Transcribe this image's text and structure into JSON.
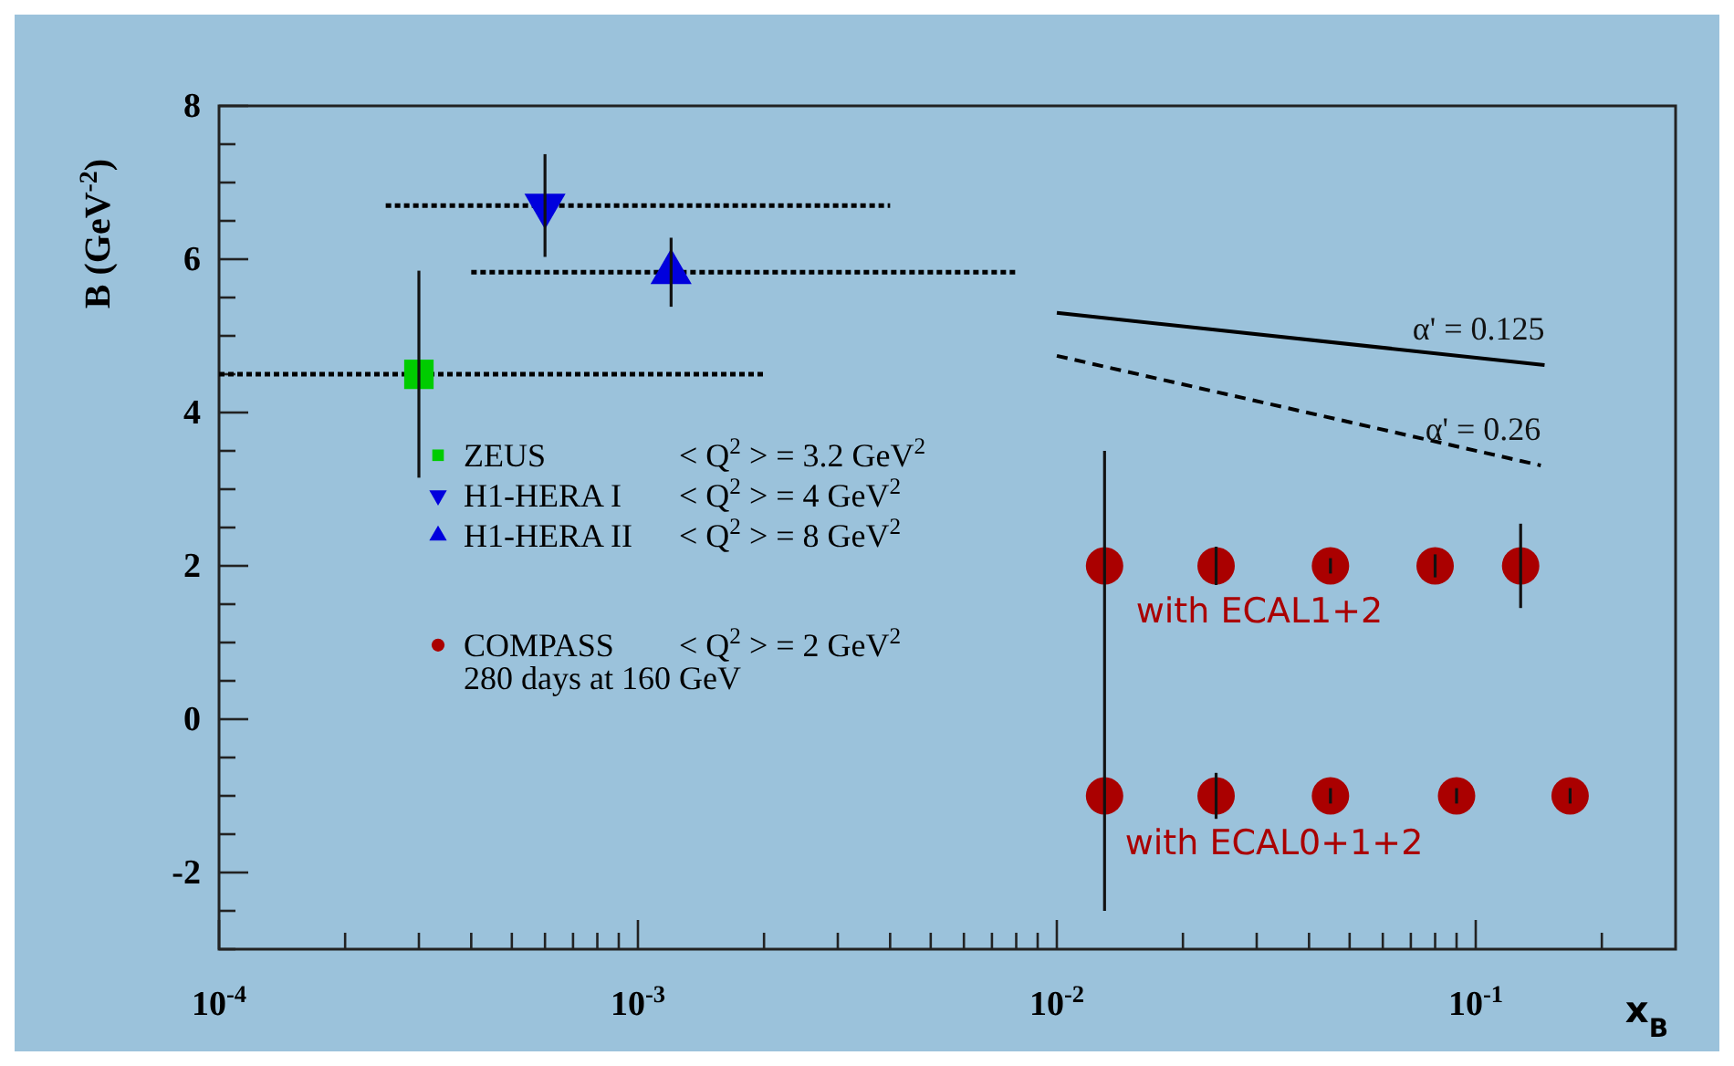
{
  "chart_data": {
    "type": "scatter",
    "xlabel": "x$_{B}$",
    "ylabel": "B (GeV$^{-2}$)",
    "log": "x",
    "xlim": [
      0.0001,
      0.3
    ],
    "ylim": [
      -3,
      8
    ],
    "xticks": [
      {
        "value": 0.0001,
        "label": "10$^{-4}$"
      },
      {
        "value": 0.0002,
        "label": null
      },
      {
        "value": 0.0003,
        "label": null
      },
      {
        "value": 0.0004,
        "label": null
      },
      {
        "value": 0.0005,
        "label": null
      },
      {
        "value": 0.0006,
        "label": null
      },
      {
        "value": 0.0007,
        "label": null
      },
      {
        "value": 0.0008,
        "label": null
      },
      {
        "value": 0.0009,
        "label": null
      },
      {
        "value": 0.001,
        "label": "10$^{-3}$"
      },
      {
        "value": 0.002,
        "label": null
      },
      {
        "value": 0.003,
        "label": null
      },
      {
        "value": 0.004,
        "label": null
      },
      {
        "value": 0.005,
        "label": null
      },
      {
        "value": 0.006,
        "label": null
      },
      {
        "value": 0.007,
        "label": null
      },
      {
        "value": 0.008,
        "label": null
      },
      {
        "value": 0.009,
        "label": null
      },
      {
        "value": 0.01,
        "label": "10$^{-2}$"
      },
      {
        "value": 0.02,
        "label": null
      },
      {
        "value": 0.03,
        "label": null
      },
      {
        "value": 0.04,
        "label": null
      },
      {
        "value": 0.05,
        "label": null
      },
      {
        "value": 0.06,
        "label": null
      },
      {
        "value": 0.07,
        "label": null
      },
      {
        "value": 0.08,
        "label": null
      },
      {
        "value": 0.09,
        "label": null
      },
      {
        "value": 0.1,
        "label": "10$^{-1}$"
      },
      {
        "value": 0.2,
        "label": null
      }
    ],
    "yticks": [
      {
        "value": -3,
        "label": null
      },
      {
        "value": -2.5,
        "label": null
      },
      -2,
      {
        "value": -1.5,
        "label": null
      },
      {
        "value": -1,
        "label": null
      },
      {
        "value": -0.5,
        "label": null
      },
      0,
      {
        "value": 0.5,
        "label": null
      },
      {
        "value": 1,
        "label": null
      },
      {
        "value": 1.5,
        "label": null
      },
      2,
      {
        "value": 2.5,
        "label": null
      },
      {
        "value": 3,
        "label": null
      },
      {
        "value": 3.5,
        "label": null
      },
      4,
      {
        "value": 4.5,
        "label": null
      },
      {
        "value": 5,
        "label": null
      },
      {
        "value": 5.5,
        "label": null
      },
      6,
      {
        "value": 6.5,
        "label": null
      },
      {
        "value": 7,
        "label": null
      },
      {
        "value": 7.5,
        "label": null
      },
      8
    ],
    "grid": false,
    "legend": "left",
    "series": [
      {
        "name": "ZEUS",
        "color": "#00cc00",
        "marker": "square",
        "x": [
          0.0003
        ],
        "values": [
          4.5
        ],
        "errors": [
          1.35
        ],
        "xerrors": [
          [
            0.0001,
            0.002
          ]
        ]
      },
      {
        "name": "H1-HERA I",
        "color": "#0000dd",
        "marker": "triangle-down",
        "x": [
          0.0006
        ],
        "values": [
          6.7
        ],
        "errors": [
          0.67
        ],
        "xerrors": [
          [
            0.00025,
            0.004
          ]
        ]
      },
      {
        "name": "H1-HERA II",
        "color": "#0000dd",
        "marker": "triangle",
        "x": [
          0.0012
        ],
        "values": [
          5.83
        ],
        "errors": [
          0.45
        ],
        "xerrors": [
          [
            0.0004,
            0.008
          ]
        ]
      },
      {
        "name": "COMPASS",
        "color": "#aa0000",
        "marker": "circle",
        "x": [
          0.013,
          0.024,
          0.045,
          0.08,
          0.128,
          0.013,
          0.024,
          0.045,
          0.09,
          0.168
        ],
        "values": [
          2,
          2,
          2,
          2,
          2,
          -1,
          -1,
          -1,
          -1,
          -1
        ],
        "errors": [
          1.5,
          0.25,
          0.1,
          0.15,
          0.55,
          1.5,
          0.3,
          0.1,
          0.1,
          0.1
        ]
      },
      {
        "name": "α' = 0.125",
        "type": "line",
        "color": "#000000",
        "line_style": "solid",
        "x": [
          0.01,
          0.146
        ],
        "values": [
          5.3,
          4.62
        ]
      },
      {
        "name": "α' = 0.26",
        "type": "line",
        "color": "#000000",
        "line_style": "dashed",
        "x": [
          0.01,
          0.143
        ],
        "values": [
          4.74,
          3.31
        ]
      }
    ],
    "annotations": [
      "< Q$^{2}$ > = 3.2 GeV$^{2}$",
      "< Q$^{2}$ > = 4 GeV$^{2}$",
      "< Q$^{2}$ > = 8 GeV$^{2}$",
      "< Q$^{2}$ > = 2 GeV$^{2}$",
      "280 days at 160 GeV",
      "with ECAL1+2",
      "with ECAL0+1+2"
    ]
  }
}
